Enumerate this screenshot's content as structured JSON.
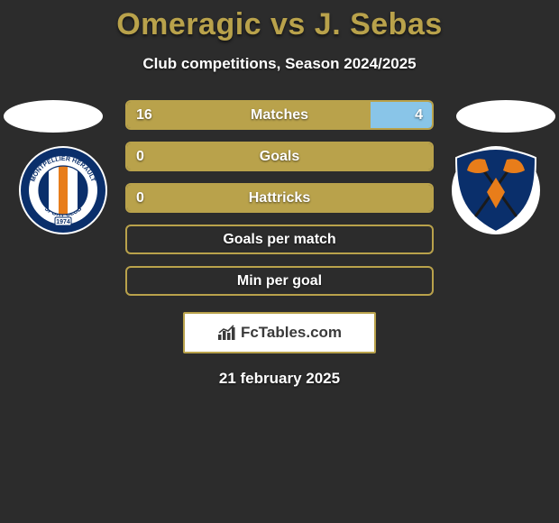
{
  "title": "Omeragic vs J. Sebas",
  "subtitle": "Club competitions, Season 2024/2025",
  "date": "21 february 2025",
  "colors": {
    "background": "#2c2c2c",
    "accent": "#b9a24b",
    "bar_border": "#b9a24b",
    "fill_left": "#b9a24b",
    "fill_right": "#89c5e8",
    "text": "#ffffff",
    "brand_text": "#3a3a3a",
    "brand_bg": "#ffffff"
  },
  "fonts": {
    "title_size_pt": 26,
    "subtitle_size_pt": 13,
    "bar_label_size_pt": 12,
    "date_size_pt": 13
  },
  "badges": {
    "left": {
      "name": "montpellier-hsc-badge",
      "ring_outer": "#0a2f6b",
      "ring_inner": "#ffffff",
      "ring_text_color": "#0a2f6b",
      "center_stripes": [
        "#0a2f6b",
        "#ffffff",
        "#e87d1a",
        "#ffffff",
        "#0a2f6b"
      ],
      "ring_label_top": "MONTPELLIER HERAULT",
      "ring_label_bottom": "SPORT CLUB",
      "year": "1974"
    },
    "right": {
      "name": "tappara-badge",
      "shield_bg": "#0a2f6b",
      "shield_border": "#ffffff",
      "axe_color": "#e87d1a",
      "axe_handle": "#1a1a1a"
    }
  },
  "bars": [
    {
      "label": "Matches",
      "left_value": 16,
      "right_value": 4,
      "left_pct": 80,
      "right_pct": 20,
      "show_left_value": true,
      "show_right_value": true
    },
    {
      "label": "Goals",
      "left_value": 0,
      "right_value": null,
      "left_pct": 100,
      "right_pct": 0,
      "show_left_value": true,
      "show_right_value": false
    },
    {
      "label": "Hattricks",
      "left_value": 0,
      "right_value": null,
      "left_pct": 100,
      "right_pct": 0,
      "show_left_value": true,
      "show_right_value": false
    },
    {
      "label": "Goals per match",
      "left_value": null,
      "right_value": null,
      "left_pct": 0,
      "right_pct": 0,
      "show_left_value": false,
      "show_right_value": false
    },
    {
      "label": "Min per goal",
      "left_value": null,
      "right_value": null,
      "left_pct": 0,
      "right_pct": 0,
      "show_left_value": false,
      "show_right_value": false
    }
  ],
  "brand": {
    "text": "FcTables.com",
    "icon": "bar-chart-icon"
  }
}
